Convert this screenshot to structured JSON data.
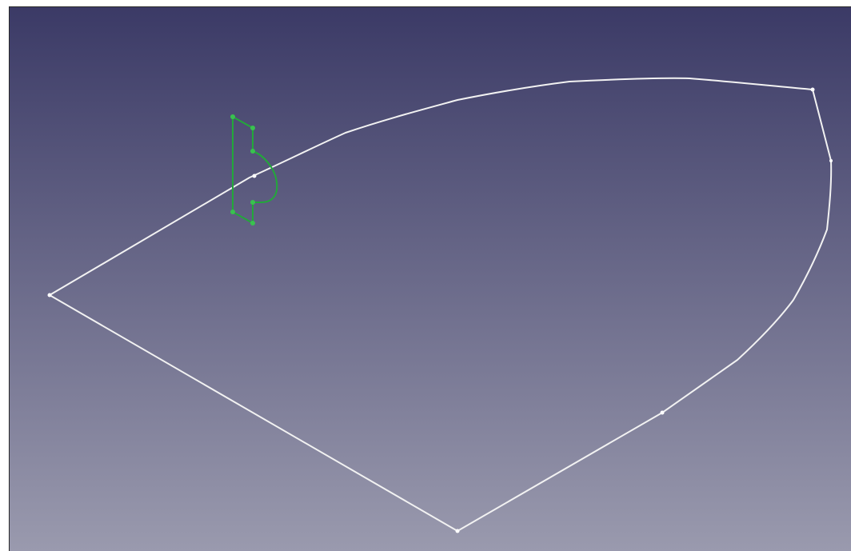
{
  "viewport": {
    "background_top": "#3b3a66",
    "background_bottom": "#9a9aae"
  },
  "sketch": {
    "outline_color": "#f2f2f2",
    "profile_color": "#22a83a",
    "profile_vertex_color": "#39c24f",
    "point_color": "#ffffff"
  }
}
